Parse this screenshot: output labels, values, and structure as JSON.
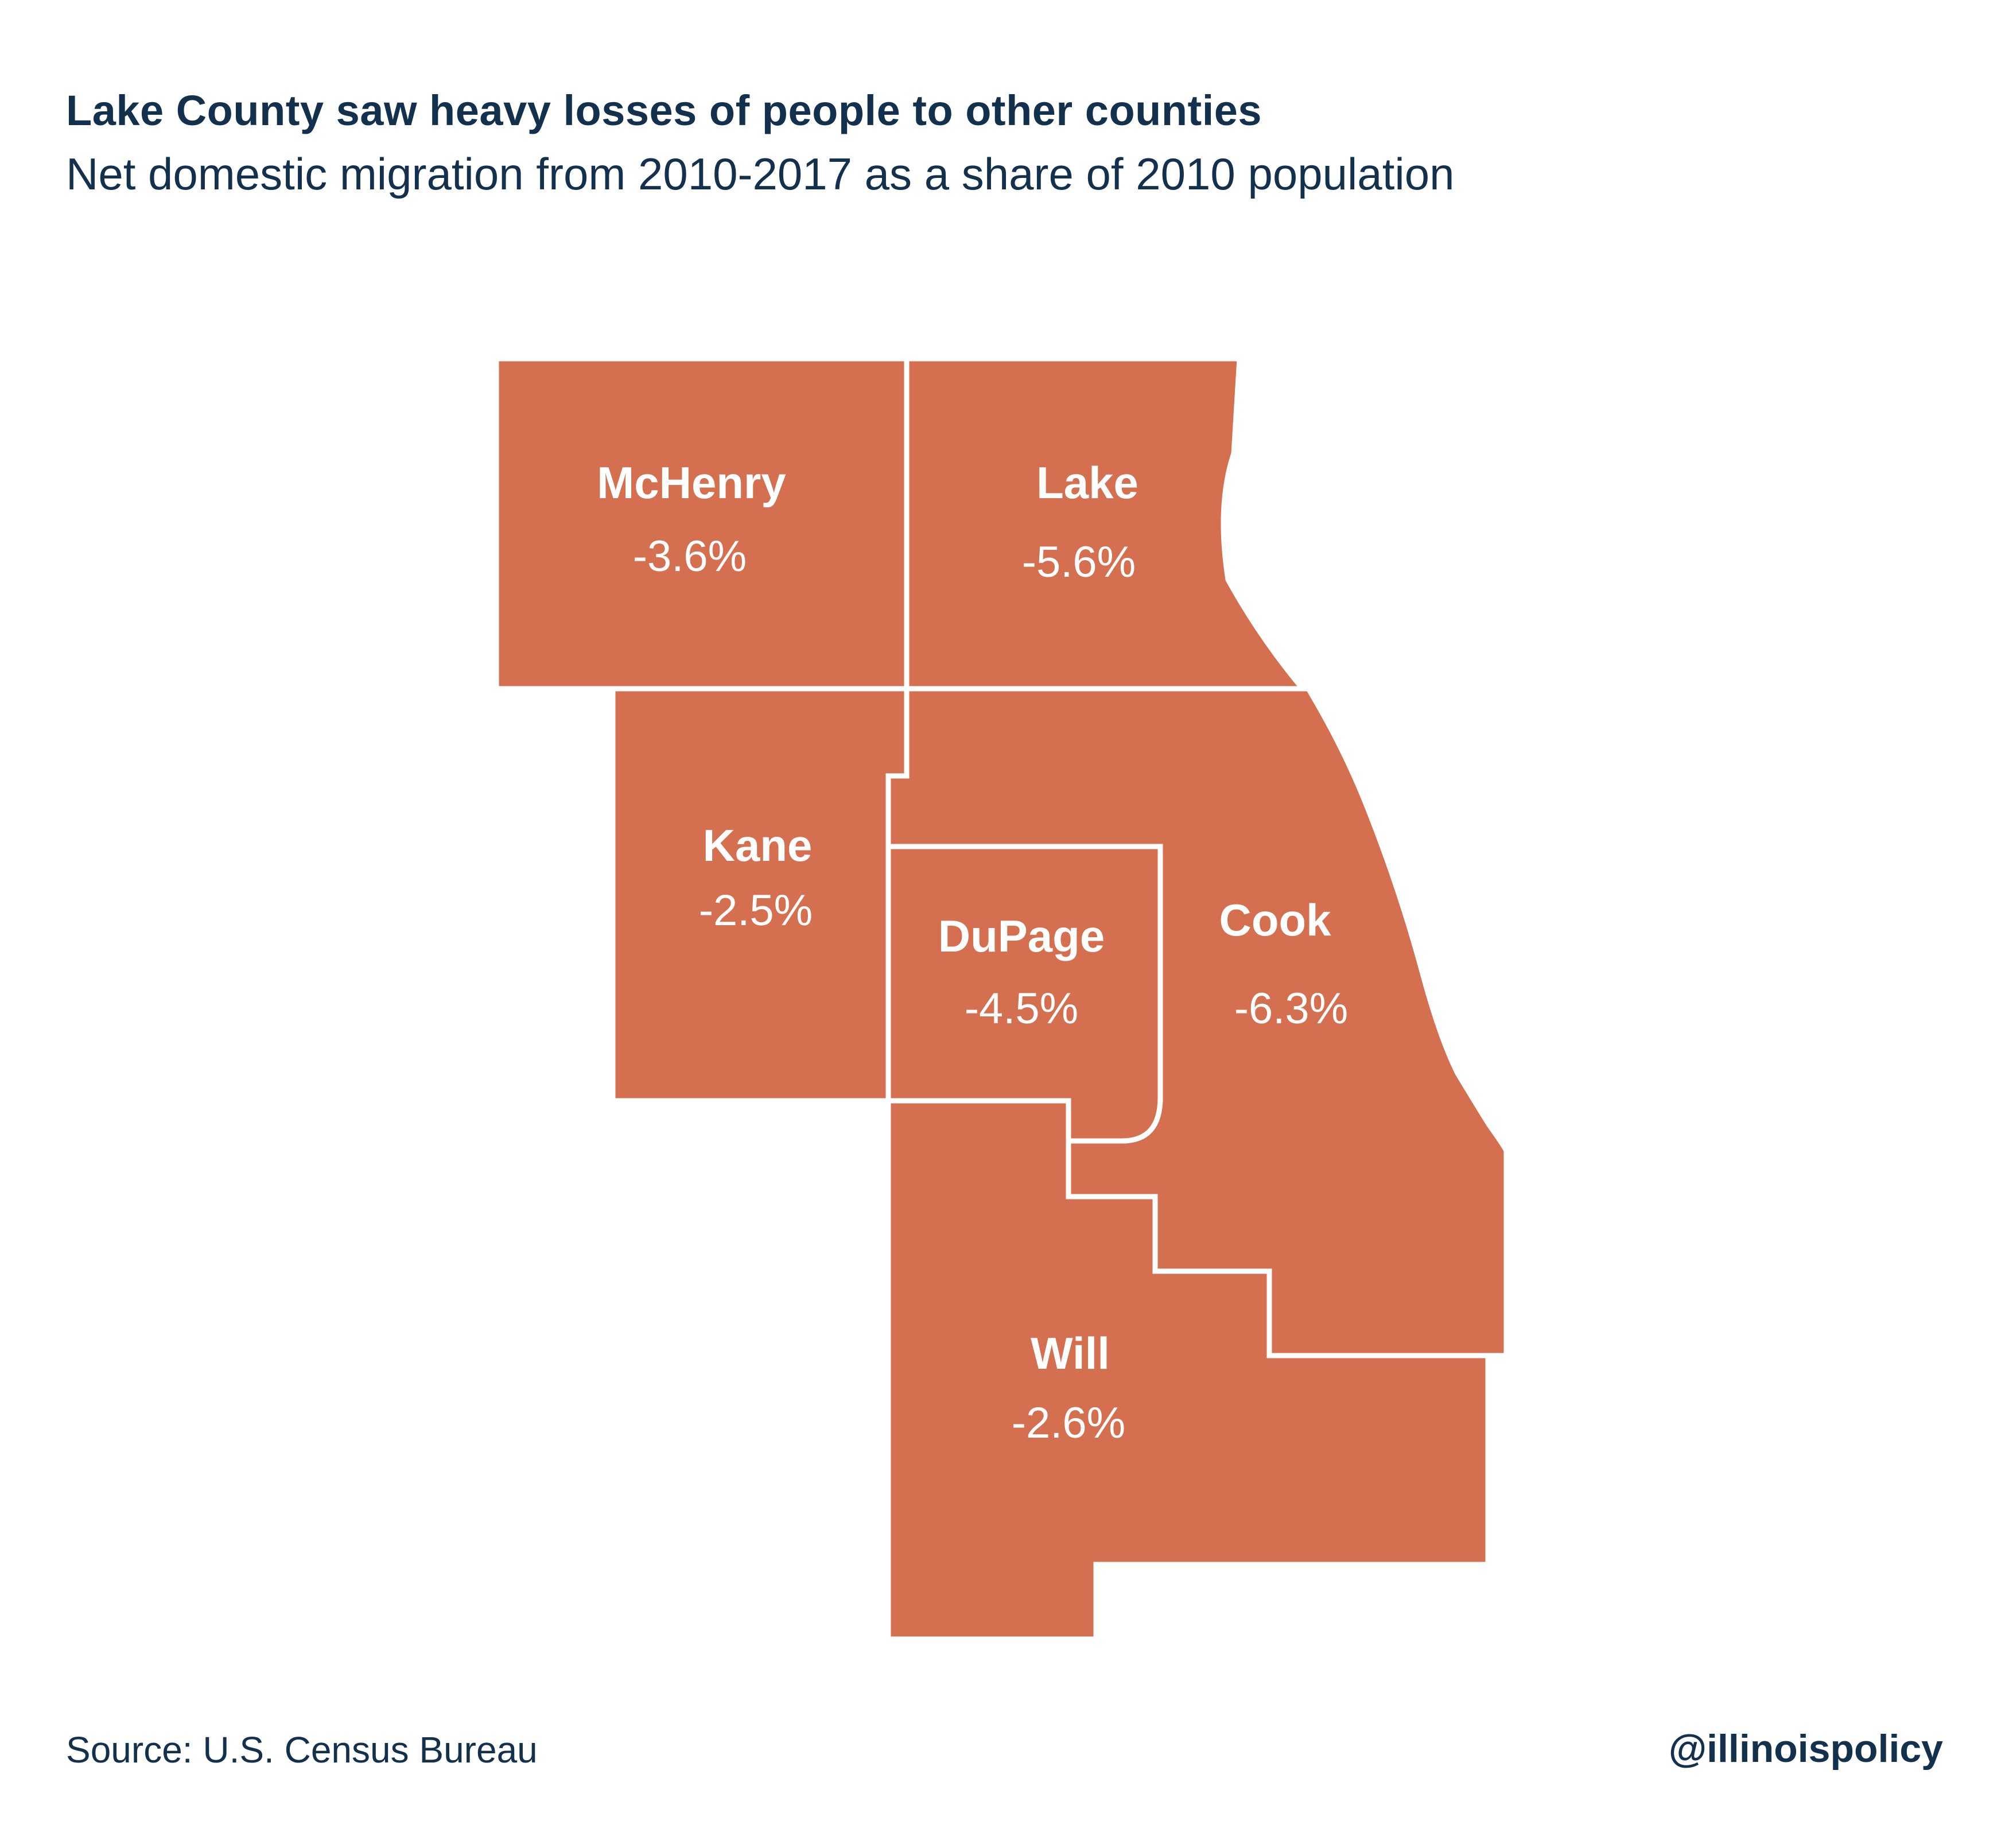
{
  "title": "Lake County saw heavy losses of people to other counties",
  "subtitle": "Net domestic migration from 2010-2017 as a share of 2010 population",
  "fill_color": "#d46f4f",
  "border_color": "#ffffff",
  "text_color": "#13304d",
  "counties": {
    "mchenry": {
      "name": "McHenry",
      "value": "-3.6%"
    },
    "lake": {
      "name": "Lake",
      "value": "-5.6%"
    },
    "kane": {
      "name": "Kane",
      "value": "-2.5%"
    },
    "dupage": {
      "name": "DuPage",
      "value": "-4.5%"
    },
    "cook": {
      "name": "Cook",
      "value": "-6.3%"
    },
    "will": {
      "name": "Will",
      "value": "-2.6%"
    }
  },
  "source": "Source: U.S. Census Bureau",
  "handle": "@illinoispolicy"
}
